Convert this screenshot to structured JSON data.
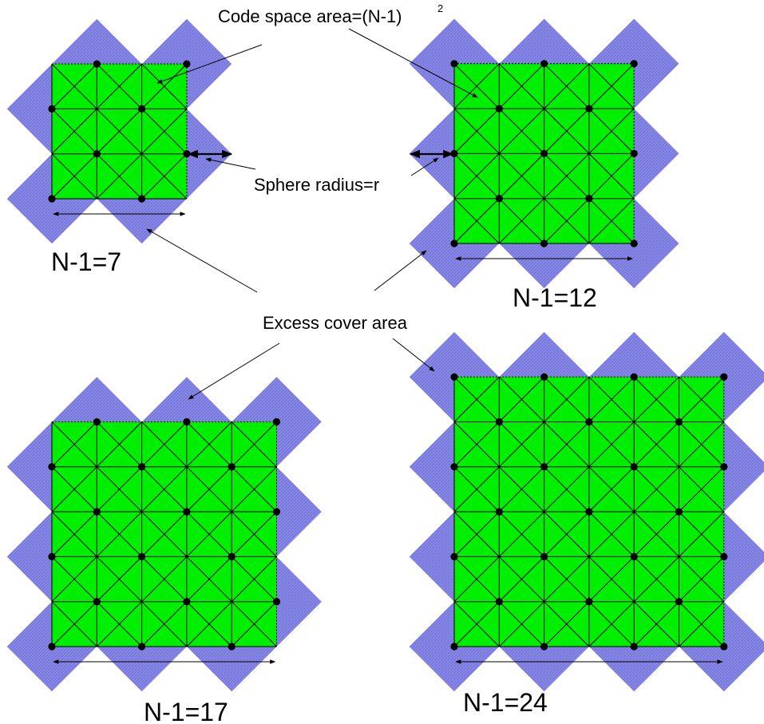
{
  "labels": {
    "code_space_area": "Code space area=(N-1)",
    "code_space_exponent": "2",
    "sphere_radius": "Sphere radius=r",
    "excess_cover_area": "Excess cover area"
  },
  "panels": [
    {
      "label": "N-1=7"
    },
    {
      "label": "N-1=12"
    },
    {
      "label": "N-1=17"
    },
    {
      "label": "N-1=24"
    }
  ],
  "colors": {
    "code_space": "#00ee00",
    "cover": "#8080e0",
    "lines": "#000000",
    "dots": "#000000"
  }
}
